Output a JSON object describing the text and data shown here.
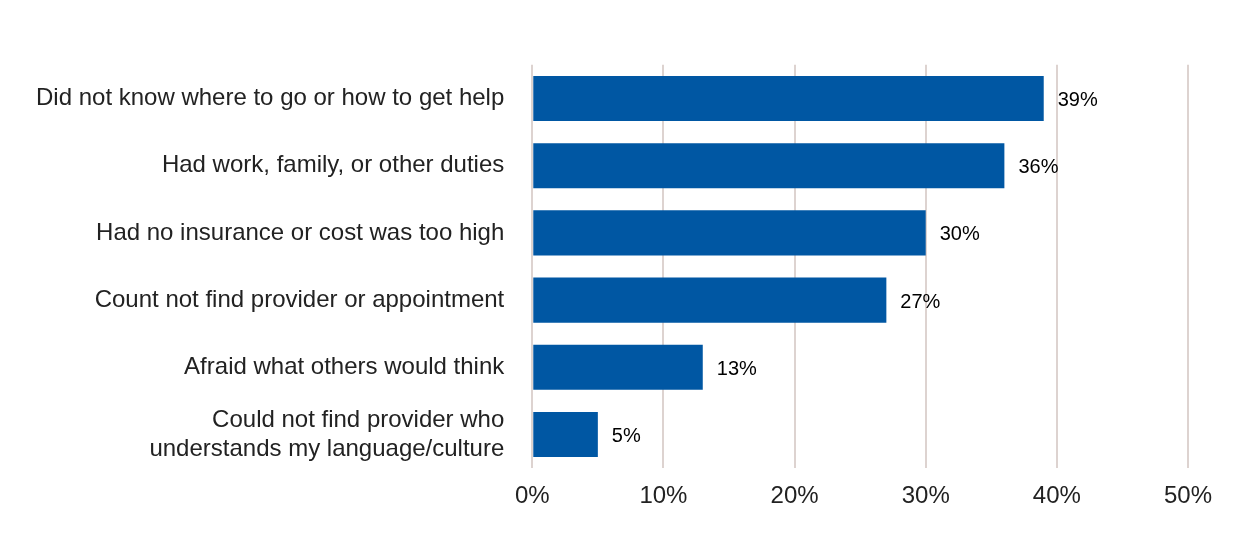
{
  "chart_data": {
    "type": "bar",
    "orientation": "horizontal",
    "categories": [
      "Did not know where to go or how to get help",
      "Had work, family, or other duties",
      "Had no insurance or cost was too high",
      "Count not find provider or appointment",
      "Afraid what others would think",
      "Could not find provider who understands my language/culture"
    ],
    "values": [
      39,
      36,
      30,
      27,
      13,
      5
    ],
    "value_labels": [
      "39%",
      "36%",
      "30%",
      "27%",
      "13%",
      "5%"
    ],
    "color": "#0057a3",
    "xlim": [
      0,
      50
    ],
    "xticks": [
      {
        "value": 0,
        "label": "0%"
      },
      {
        "value": 10,
        "label": "10%"
      },
      {
        "value": 20,
        "label": "20%"
      },
      {
        "value": 30,
        "label": "30%"
      },
      {
        "value": 40,
        "label": "40%"
      },
      {
        "value": 50,
        "label": "50%"
      }
    ],
    "grid": "x",
    "legend": false
  }
}
